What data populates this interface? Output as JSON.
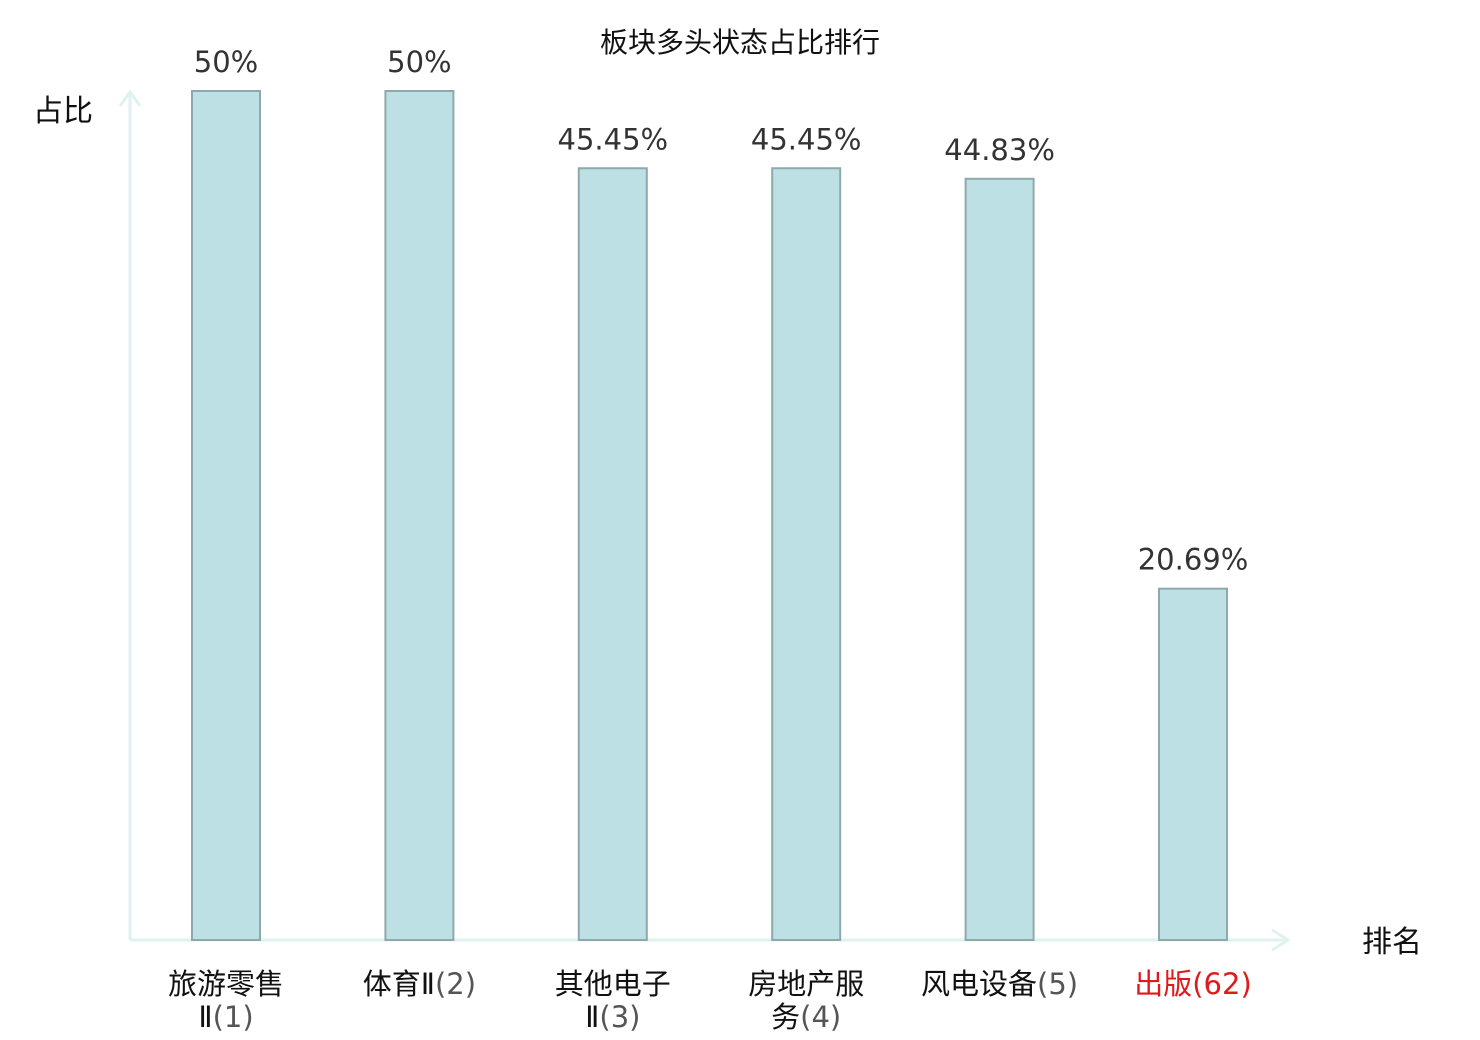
{
  "chart_data": {
    "type": "bar",
    "title": "板块多头状态占比排行",
    "ylabel": "占比",
    "xlabel": "排名",
    "ylim": [
      0,
      50
    ],
    "grid": false,
    "categories": [
      {
        "name_lines": [
          "旅游零售",
          "Ⅱ"
        ],
        "rank": "(1)",
        "highlight": false
      },
      {
        "name_lines": [
          "体育Ⅱ"
        ],
        "rank": "(2)",
        "highlight": false
      },
      {
        "name_lines": [
          "其他电子",
          "Ⅱ"
        ],
        "rank": "(3)",
        "highlight": false
      },
      {
        "name_lines": [
          "房地产服",
          "务"
        ],
        "rank": "(4)",
        "highlight": false
      },
      {
        "name_lines": [
          "风电设备"
        ],
        "rank": "(5)",
        "highlight": false
      },
      {
        "name_lines": [
          "出版"
        ],
        "rank": "(62)",
        "highlight": true
      }
    ],
    "values": [
      50,
      50,
      45.45,
      45.45,
      44.83,
      20.69
    ],
    "value_labels": [
      "50%",
      "50%",
      "45.45%",
      "45.45%",
      "44.83%",
      "20.69%"
    ],
    "colors": {
      "bar_fill": "#bce0e3",
      "bar_stroke": "#8fa8ab",
      "axis": "#e0f2ef",
      "highlight": "#e0191b"
    }
  }
}
